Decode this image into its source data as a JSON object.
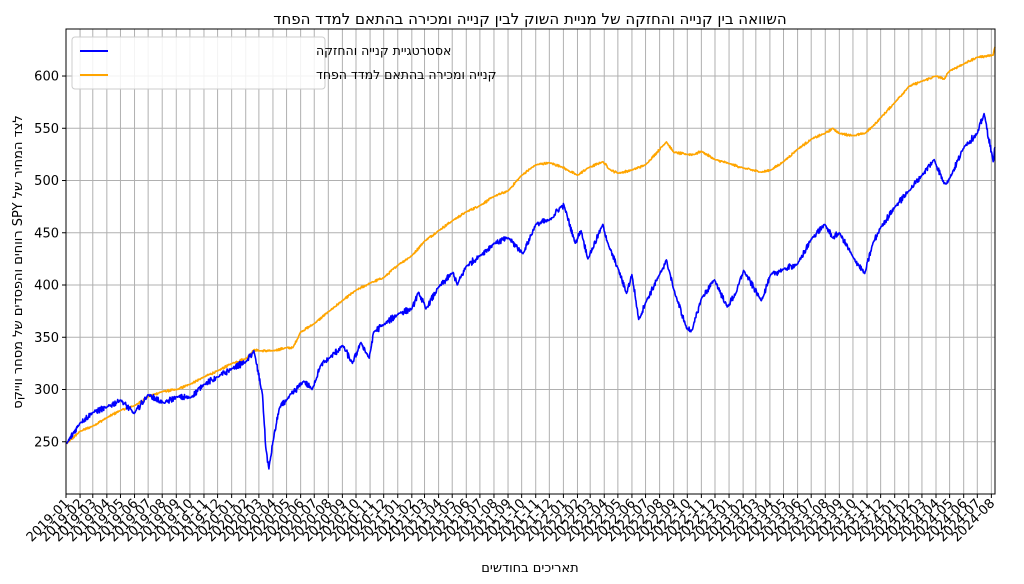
{
  "chart_data": {
    "type": "line",
    "title": "השוואה בין קנייה והחזקה של מניית השוק לבין קנייה ומכירה בהתאם למדד הפחד",
    "xlabel": "תאריכים בחודשים",
    "ylabel": "רווחים והפסדים של מסחר ווייקס SPY לצד המחיר של",
    "ylim": [
      200,
      645
    ],
    "yticks": [
      250,
      300,
      350,
      400,
      450,
      500,
      550,
      600
    ],
    "grid": true,
    "legend_position": "top-left",
    "x_tick_labels": [
      "2019-01",
      "2019-02",
      "2019-03",
      "2019-04",
      "2019-05",
      "2019-06",
      "2019-07",
      "2019-08",
      "2019-09",
      "2019-10",
      "2019-11",
      "2019-12",
      "2020-01",
      "2020-02",
      "2020-03",
      "2020-04",
      "2020-05",
      "2020-06",
      "2020-07",
      "2020-08",
      "2020-09",
      "2020-10",
      "2020-11",
      "2020-12",
      "2021-01",
      "2021-02",
      "2021-03",
      "2021-04",
      "2021-05",
      "2021-06",
      "2021-07",
      "2021-08",
      "2021-09",
      "2021-10",
      "2021-11",
      "2021-12",
      "2022-01",
      "2022-02",
      "2022-03",
      "2022-04",
      "2022-05",
      "2022-06",
      "2022-07",
      "2022-08",
      "2022-09",
      "2022-10",
      "2022-11",
      "2022-12",
      "2023-01",
      "2023-02",
      "2023-03",
      "2023-04",
      "2023-05",
      "2023-06",
      "2023-07",
      "2023-08",
      "2023-09",
      "2023-10",
      "2023-11",
      "2023-12",
      "2024-01",
      "2024-02",
      "2024-03",
      "2024-04",
      "2024-05",
      "2024-06",
      "2024-07",
      "2024-08"
    ],
    "series": [
      {
        "name": "אסטרטגיית קנייה והחזקה",
        "color": "#0000ff",
        "x": [
          "2019-01-02",
          "2019-02-01",
          "2019-03-01",
          "2019-04-01",
          "2019-05-01",
          "2019-05-31",
          "2019-07-01",
          "2019-08-05",
          "2019-09-03",
          "2019-10-02",
          "2019-11-01",
          "2019-12-02",
          "2020-01-02",
          "2020-02-03",
          "2020-02-19",
          "2020-03-09",
          "2020-03-16",
          "2020-03-23",
          "2020-04-01",
          "2020-04-15",
          "2020-05-01",
          "2020-06-08",
          "2020-06-26",
          "2020-07-15",
          "2020-08-03",
          "2020-09-02",
          "2020-09-23",
          "2020-10-12",
          "2020-10-30",
          "2020-11-09",
          "2020-12-01",
          "2021-01-04",
          "2021-02-01",
          "2021-02-16",
          "2021-03-04",
          "2021-04-01",
          "2021-05-03",
          "2021-05-12",
          "2021-06-01",
          "2021-07-01",
          "2021-08-02",
          "2021-09-02",
          "2021-10-04",
          "2021-11-01",
          "2021-12-01",
          "2021-12-29",
          "2022-01-03",
          "2022-01-27",
          "2022-02-09",
          "2022-02-24",
          "2022-03-29",
          "2022-04-11",
          "2022-05-02",
          "2022-05-20",
          "2022-06-01",
          "2022-06-16",
          "2022-07-01",
          "2022-08-01",
          "2022-08-16",
          "2022-09-01",
          "2022-09-30",
          "2022-10-12",
          "2022-11-01",
          "2022-11-30",
          "2022-12-28",
          "2023-01-17",
          "2023-02-02",
          "2023-03-13",
          "2023-04-03",
          "2023-05-01",
          "2023-06-01",
          "2023-07-03",
          "2023-07-31",
          "2023-08-18",
          "2023-09-01",
          "2023-10-02",
          "2023-10-27",
          "2023-11-14",
          "2023-12-01",
          "2024-01-02",
          "2024-02-01",
          "2024-03-01",
          "2024-03-28",
          "2024-04-19",
          "2024-05-01",
          "2024-06-03",
          "2024-07-01",
          "2024-07-16",
          "2024-08-05",
          "2024-08-09"
        ],
        "y": [
          248,
          268,
          278,
          283,
          290,
          277,
          295,
          287,
          293,
          292,
          305,
          312,
          320,
          327,
          337,
          295,
          245,
          224,
          250,
          282,
          290,
          308,
          300,
          323,
          330,
          342,
          325,
          345,
          330,
          355,
          362,
          373,
          377,
          393,
          377,
          398,
          412,
          400,
          418,
          428,
          440,
          445,
          430,
          458,
          462,
          476,
          475,
          440,
          452,
          425,
          458,
          437,
          415,
          392,
          410,
          367,
          383,
          410,
          424,
          396,
          358,
          357,
          387,
          405,
          379,
          393,
          414,
          385,
          410,
          415,
          420,
          445,
          458,
          445,
          450,
          426,
          411,
          440,
          455,
          475,
          490,
          505,
          520,
          497,
          502,
          533,
          545,
          564,
          518,
          532
        ]
      },
      {
        "name": "קנייה ומכירה בהתאם למדד הפחד",
        "color": "#ffa500",
        "x": [
          "2019-01-02",
          "2019-02-01",
          "2019-03-01",
          "2019-04-01",
          "2019-05-01",
          "2019-06-03",
          "2019-07-01",
          "2019-08-01",
          "2019-09-03",
          "2019-10-01",
          "2019-11-01",
          "2019-12-02",
          "2020-01-02",
          "2020-02-03",
          "2020-02-19",
          "2020-03-02",
          "2020-04-01",
          "2020-05-01",
          "2020-05-15",
          "2020-06-01",
          "2020-07-01",
          "2020-08-03",
          "2020-09-01",
          "2020-10-01",
          "2020-11-02",
          "2020-12-01",
          "2021-01-04",
          "2021-02-01",
          "2021-03-01",
          "2021-04-01",
          "2021-05-03",
          "2021-06-01",
          "2021-07-01",
          "2021-08-02",
          "2021-09-01",
          "2021-10-01",
          "2021-11-01",
          "2021-12-01",
          "2021-12-29",
          "2022-01-10",
          "2022-02-01",
          "2022-02-24",
          "2022-03-29",
          "2022-04-15",
          "2022-05-02",
          "2022-06-01",
          "2022-07-01",
          "2022-08-16",
          "2022-09-01",
          "2022-09-30",
          "2022-10-17",
          "2022-11-01",
          "2022-12-01",
          "2023-01-03",
          "2023-02-01",
          "2023-03-13",
          "2023-04-03",
          "2023-05-01",
          "2023-06-01",
          "2023-07-03",
          "2023-07-31",
          "2023-08-18",
          "2023-09-01",
          "2023-10-02",
          "2023-10-27",
          "2023-11-14",
          "2023-12-01",
          "2024-01-02",
          "2024-02-01",
          "2024-03-01",
          "2024-04-01",
          "2024-04-19",
          "2024-05-01",
          "2024-06-03",
          "2024-07-01",
          "2024-08-05",
          "2024-08-09"
        ],
        "y": [
          248,
          260,
          265,
          273,
          280,
          285,
          293,
          298,
          300,
          305,
          312,
          318,
          325,
          330,
          338,
          337,
          337,
          340,
          340,
          355,
          363,
          375,
          385,
          395,
          402,
          407,
          420,
          428,
          442,
          452,
          462,
          470,
          476,
          485,
          490,
          505,
          515,
          517,
          513,
          510,
          505,
          512,
          518,
          510,
          507,
          510,
          515,
          537,
          527,
          525,
          525,
          528,
          520,
          516,
          512,
          508,
          510,
          518,
          530,
          540,
          545,
          550,
          545,
          543,
          545,
          552,
          560,
          575,
          590,
          595,
          600,
          597,
          605,
          612,
          618,
          620,
          628
        ]
      }
    ]
  }
}
